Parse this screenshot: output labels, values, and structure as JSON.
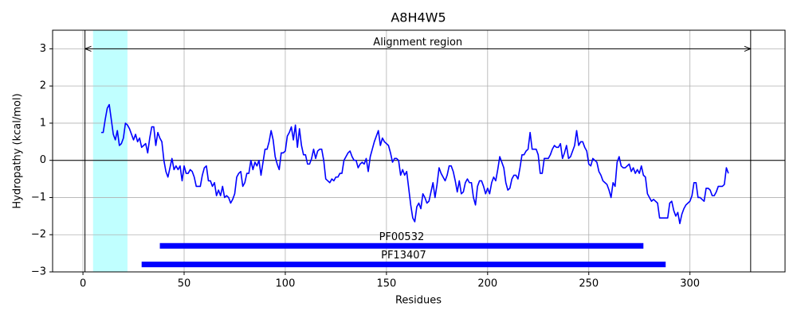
{
  "chart_data": {
    "type": "line",
    "title": "A8H4W5",
    "x_label": "Residues",
    "y_label": "Hydropathy (kcal/mol)",
    "x": [
      9,
      10,
      11,
      12,
      13,
      14,
      15,
      16,
      17,
      18,
      19,
      20,
      21,
      22,
      23,
      24,
      25,
      26,
      27,
      28,
      29,
      30,
      31,
      32,
      33,
      34,
      35,
      36,
      37,
      38,
      39,
      40,
      41,
      42,
      43,
      44,
      45,
      46,
      47,
      48,
      49,
      50,
      51,
      52,
      53,
      54,
      55,
      56,
      57,
      58,
      59,
      60,
      61,
      62,
      63,
      64,
      65,
      66,
      67,
      68,
      69,
      70,
      71,
      72,
      73,
      74,
      75,
      76,
      77,
      78,
      79,
      80,
      81,
      82,
      83,
      84,
      85,
      86,
      87,
      88,
      89,
      90,
      91,
      92,
      93,
      94,
      95,
      96,
      97,
      98,
      99,
      100,
      101,
      102,
      103,
      104,
      105,
      106,
      107,
      108,
      109,
      110,
      111,
      112,
      113,
      114,
      115,
      116,
      117,
      118,
      119,
      120,
      121,
      122,
      123,
      124,
      125,
      126,
      127,
      128,
      129,
      130,
      131,
      132,
      133,
      134,
      135,
      136,
      137,
      138,
      139,
      140,
      141,
      142,
      143,
      144,
      145,
      146,
      147,
      148,
      149,
      150,
      151,
      152,
      153,
      154,
      155,
      156,
      157,
      158,
      159,
      160,
      161,
      162,
      163,
      164,
      165,
      166,
      167,
      168,
      169,
      170,
      171,
      172,
      173,
      174,
      175,
      176,
      177,
      178,
      179,
      180,
      181,
      182,
      183,
      184,
      185,
      186,
      187,
      188,
      189,
      190,
      191,
      192,
      193,
      194,
      195,
      196,
      197,
      198,
      199,
      200,
      201,
      202,
      203,
      204,
      205,
      206,
      207,
      208,
      209,
      210,
      211,
      212,
      213,
      214,
      215,
      216,
      217,
      218,
      219,
      220,
      221,
      222,
      223,
      224,
      225,
      226,
      227,
      228,
      229,
      230,
      231,
      232,
      233,
      234,
      235,
      236,
      237,
      238,
      239,
      240,
      241,
      242,
      243,
      244,
      245,
      246,
      247,
      248,
      249,
      250,
      251,
      252,
      253,
      254,
      255,
      256,
      257,
      258,
      259,
      260,
      261,
      262,
      263,
      264,
      265,
      266,
      267,
      268,
      269,
      270,
      271,
      272,
      273,
      274,
      275,
      276,
      277,
      278,
      279,
      280,
      281,
      282,
      283,
      284,
      285,
      286,
      287,
      288,
      289,
      290,
      291,
      292,
      293,
      294,
      295,
      296,
      297,
      298,
      299,
      300,
      301,
      302,
      303,
      304,
      305,
      306,
      307,
      308,
      309,
      310,
      311,
      312,
      313,
      314,
      315,
      316,
      317,
      318,
      319
    ],
    "series": [
      {
        "color": "#0000ff",
        "values": [
          0.75,
          0.75,
          1.1,
          1.4,
          1.5,
          1.1,
          0.7,
          0.55,
          0.8,
          0.4,
          0.45,
          0.6,
          1.0,
          0.95,
          0.85,
          0.7,
          0.55,
          0.7,
          0.5,
          0.6,
          0.35,
          0.4,
          0.45,
          0.2,
          0.6,
          0.9,
          0.9,
          0.4,
          0.75,
          0.6,
          0.5,
          0.0,
          -0.3,
          -0.45,
          -0.2,
          0.05,
          -0.25,
          -0.15,
          -0.25,
          -0.15,
          -0.55,
          -0.15,
          -0.35,
          -0.35,
          -0.25,
          -0.3,
          -0.45,
          -0.7,
          -0.7,
          -0.7,
          -0.4,
          -0.2,
          -0.15,
          -0.55,
          -0.55,
          -0.7,
          -0.6,
          -0.95,
          -0.8,
          -0.95,
          -0.7,
          -1.0,
          -0.95,
          -1.0,
          -1.15,
          -1.05,
          -0.9,
          -0.45,
          -0.35,
          -0.3,
          -0.7,
          -0.6,
          -0.35,
          -0.35,
          0.0,
          -0.25,
          -0.05,
          -0.15,
          0.0,
          -0.4,
          -0.05,
          0.3,
          0.3,
          0.5,
          0.8,
          0.55,
          0.1,
          -0.1,
          -0.25,
          0.2,
          0.2,
          0.25,
          0.65,
          0.75,
          0.9,
          0.55,
          0.95,
          0.35,
          0.85,
          0.4,
          0.15,
          0.15,
          -0.1,
          -0.1,
          0.05,
          0.3,
          0.05,
          0.25,
          0.3,
          0.3,
          0.0,
          -0.5,
          -0.55,
          -0.6,
          -0.5,
          -0.55,
          -0.45,
          -0.45,
          -0.35,
          -0.35,
          0.0,
          0.1,
          0.2,
          0.25,
          0.1,
          0.0,
          0.0,
          -0.2,
          -0.1,
          -0.05,
          -0.1,
          0.05,
          -0.3,
          0.1,
          0.3,
          0.5,
          0.65,
          0.8,
          0.4,
          0.6,
          0.5,
          0.45,
          0.4,
          0.2,
          -0.05,
          0.05,
          0.05,
          0.0,
          -0.4,
          -0.25,
          -0.4,
          -0.3,
          -0.75,
          -1.2,
          -1.55,
          -1.65,
          -1.25,
          -1.15,
          -1.3,
          -0.9,
          -1.0,
          -1.15,
          -1.1,
          -0.85,
          -0.6,
          -1.0,
          -0.65,
          -0.2,
          -0.35,
          -0.45,
          -0.55,
          -0.4,
          -0.15,
          -0.15,
          -0.3,
          -0.55,
          -0.85,
          -0.55,
          -0.9,
          -0.85,
          -0.6,
          -0.5,
          -0.6,
          -0.6,
          -1.0,
          -1.2,
          -0.7,
          -0.55,
          -0.55,
          -0.7,
          -0.9,
          -0.75,
          -0.9,
          -0.6,
          -0.45,
          -0.55,
          -0.25,
          0.1,
          -0.05,
          -0.2,
          -0.6,
          -0.8,
          -0.75,
          -0.5,
          -0.4,
          -0.4,
          -0.5,
          -0.2,
          0.15,
          0.15,
          0.25,
          0.3,
          0.75,
          0.3,
          0.3,
          0.3,
          0.15,
          -0.35,
          -0.35,
          0.05,
          0.05,
          0.05,
          0.15,
          0.3,
          0.4,
          0.35,
          0.35,
          0.45,
          0.05,
          0.2,
          0.4,
          0.05,
          0.1,
          0.25,
          0.4,
          0.8,
          0.4,
          0.5,
          0.5,
          0.35,
          0.25,
          -0.1,
          -0.15,
          0.05,
          0.0,
          -0.05,
          -0.3,
          -0.4,
          -0.55,
          -0.6,
          -0.65,
          -0.8,
          -1.0,
          -0.6,
          -0.7,
          -0.05,
          0.1,
          -0.15,
          -0.2,
          -0.2,
          -0.15,
          -0.1,
          -0.3,
          -0.2,
          -0.35,
          -0.25,
          -0.35,
          -0.15,
          -0.4,
          -0.45,
          -0.9,
          -1.0,
          -1.1,
          -1.05,
          -1.1,
          -1.15,
          -1.55,
          -1.55,
          -1.55,
          -1.55,
          -1.55,
          -1.15,
          -1.1,
          -1.35,
          -1.5,
          -1.4,
          -1.7,
          -1.45,
          -1.3,
          -1.2,
          -1.15,
          -1.1,
          -0.95,
          -0.6,
          -0.6,
          -1.0,
          -1.0,
          -1.05,
          -1.1,
          -0.75,
          -0.75,
          -0.8,
          -0.95,
          -0.95,
          -0.85,
          -0.7,
          -0.7,
          -0.7,
          -0.65,
          -0.2,
          -0.35
        ]
      }
    ],
    "xlim": [
      -15,
      347
    ],
    "ylim": [
      -3,
      3.5
    ],
    "xticks": [
      0,
      50,
      100,
      150,
      200,
      250,
      300
    ],
    "yticks": [
      {
        "value": -3,
        "label": "−3"
      },
      {
        "value": -2,
        "label": "−2"
      },
      {
        "value": -1,
        "label": "−1"
      },
      0,
      1,
      2,
      3
    ],
    "grid": true,
    "hline": 0,
    "vlines": [
      1,
      330
    ],
    "span": {
      "start": 5,
      "end": 22,
      "color": "#c0ffff"
    },
    "arrow": {
      "start": 1,
      "end": 330,
      "y": 3,
      "label": "Alignment region"
    },
    "domains": [
      {
        "name": "PF00532",
        "start": 38,
        "end": 277,
        "y": -2.3,
        "color": "#0000ff"
      },
      {
        "name": "PF13407",
        "start": 29,
        "end": 288,
        "y": -2.8,
        "color": "#0000ff"
      }
    ]
  }
}
